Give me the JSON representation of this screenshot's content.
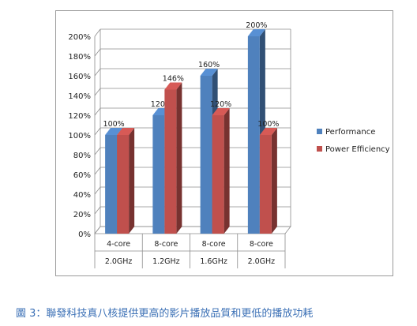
{
  "caption": "圖 3：聯發科技真八核提供更高的影片播放品質和更低的播放功耗",
  "chart_data": {
    "type": "bar",
    "categories": [
      {
        "line1": "4-core",
        "line2": "2.0GHz"
      },
      {
        "line1": "8-core",
        "line2": "1.2GHz"
      },
      {
        "line1": "8-core",
        "line2": "1.6GHz"
      },
      {
        "line1": "8-core",
        "line2": "2.0GHz"
      }
    ],
    "series": [
      {
        "name": "Performance",
        "color": "#4f81bd",
        "values": [
          100,
          120,
          160,
          200
        ],
        "labels": [
          "100%",
          "120%",
          "160%",
          "200%"
        ]
      },
      {
        "name": "Power Efficiency",
        "color": "#c0504d",
        "values": [
          100,
          146,
          120,
          100
        ],
        "labels": [
          "",
          "146%",
          "120%",
          "100%"
        ]
      }
    ],
    "y_ticks": [
      "0%",
      "20%",
      "40%",
      "60%",
      "80%",
      "100%",
      "120%",
      "140%",
      "160%",
      "180%",
      "200%"
    ],
    "ylim": [
      0,
      200
    ],
    "grid": true,
    "legend_position": "right",
    "style": "3d-clustered-column"
  }
}
